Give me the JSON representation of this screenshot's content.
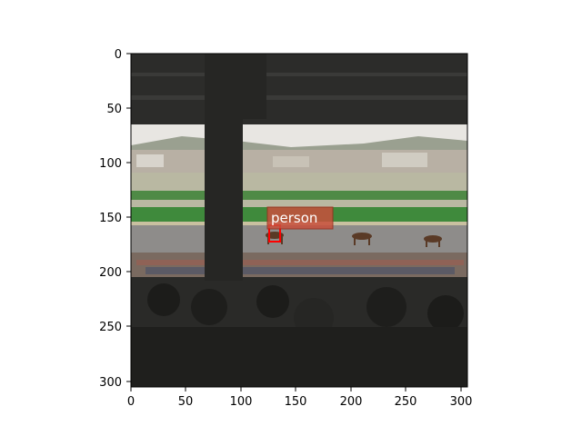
{
  "figure": {
    "x_ticks": [
      "0",
      "50",
      "100",
      "150",
      "200",
      "250",
      "300"
    ],
    "y_ticks": [
      "0",
      "50",
      "100",
      "150",
      "200",
      "250",
      "300"
    ]
  },
  "detection": {
    "label": "person",
    "box_color": "#ff0000",
    "label_bg_color": "#c8503c"
  },
  "scene": {
    "elements": [
      "grandstand-roof-icon",
      "support-pillar-icon",
      "hills-icon",
      "infield-icon",
      "race-track-icon",
      "horses-icon",
      "crowd-icon",
      "spectator-silhouettes-icon"
    ]
  }
}
